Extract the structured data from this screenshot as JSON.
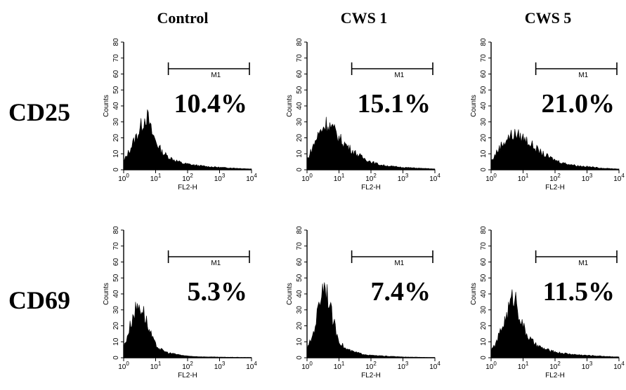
{
  "columns": [
    "Control",
    "CWS 1",
    "CWS 5"
  ],
  "rows": [
    "CD25",
    "CD69"
  ],
  "chart_data": [
    {
      "type": "area",
      "row": "CD25",
      "column": "Control",
      "xlabel": "FL2-H",
      "ylabel": "Counts",
      "xscale": "log",
      "xlim": [
        1,
        10000
      ],
      "ylim": [
        0,
        80
      ],
      "x_ticks": [
        "10^0",
        "10^1",
        "10^2",
        "10^3",
        "10^4"
      ],
      "y_ticks": [
        "0",
        "10",
        "20",
        "30",
        "40",
        "50",
        "60",
        "70",
        "80"
      ],
      "gate": {
        "label": "M1",
        "from": 25,
        "to": 10000
      },
      "percent_label": "10.4%",
      "x": [
        1,
        1.5,
        2,
        3,
        4,
        5,
        6,
        7,
        9,
        12,
        16,
        25,
        40,
        70,
        150,
        400,
        1000,
        3000,
        10000
      ],
      "y": [
        5,
        12,
        17,
        24,
        30,
        34,
        31,
        25,
        20,
        15,
        11,
        8,
        6,
        4,
        3,
        2,
        1.5,
        1,
        0.5
      ]
    },
    {
      "type": "area",
      "row": "CD25",
      "column": "CWS 1",
      "xlabel": "FL2-H",
      "ylabel": "Counts",
      "xscale": "log",
      "xlim": [
        1,
        10000
      ],
      "ylim": [
        0,
        80
      ],
      "x_ticks": [
        "10^0",
        "10^1",
        "10^2",
        "10^3",
        "10^4"
      ],
      "y_ticks": [
        "0",
        "10",
        "20",
        "30",
        "40",
        "50",
        "60",
        "70",
        "80"
      ],
      "gate": {
        "label": "M1",
        "from": 25,
        "to": 10000
      },
      "percent_label": "15.1%",
      "x": [
        1,
        1.5,
        2,
        3,
        4,
        5,
        6,
        8,
        10,
        14,
        20,
        30,
        50,
        100,
        200,
        500,
        1000,
        3000,
        10000
      ],
      "y": [
        6,
        14,
        20,
        26,
        29,
        28,
        26,
        23,
        20,
        17,
        14,
        11,
        8,
        5,
        3,
        2,
        1.5,
        1,
        0.5
      ]
    },
    {
      "type": "area",
      "row": "CD25",
      "column": "CWS 5",
      "xlabel": "FL2-H",
      "ylabel": "Counts",
      "xscale": "log",
      "xlim": [
        1,
        10000
      ],
      "ylim": [
        0,
        80
      ],
      "x_ticks": [
        "10^0",
        "10^1",
        "10^2",
        "10^3",
        "10^4"
      ],
      "y_ticks": [
        "0",
        "10",
        "20",
        "30",
        "40",
        "50",
        "60",
        "70",
        "80"
      ],
      "gate": {
        "label": "M1",
        "from": 25,
        "to": 10000
      },
      "percent_label": "21.0%",
      "x": [
        1,
        1.5,
        2,
        3,
        4,
        5,
        6,
        8,
        10,
        14,
        20,
        30,
        50,
        100,
        200,
        500,
        1000,
        3000,
        10000
      ],
      "y": [
        5,
        11,
        15,
        19,
        21,
        22,
        22,
        21,
        20,
        18,
        15,
        12,
        9,
        6,
        4,
        2.5,
        2,
        1,
        0.5
      ]
    },
    {
      "type": "area",
      "row": "CD69",
      "column": "Control",
      "xlabel": "FL2-H",
      "ylabel": "Counts",
      "xscale": "log",
      "xlim": [
        1,
        10000
      ],
      "ylim": [
        0,
        80
      ],
      "x_ticks": [
        "10^0",
        "10^1",
        "10^2",
        "10^3",
        "10^4"
      ],
      "y_ticks": [
        "0",
        "10",
        "20",
        "30",
        "40",
        "50",
        "60",
        "70",
        "80"
      ],
      "gate": {
        "label": "M1",
        "from": 25,
        "to": 10000
      },
      "percent_label": "5.3%",
      "x": [
        1,
        1.5,
        2,
        2.5,
        3,
        4,
        5,
        6,
        8,
        10,
        15,
        25,
        50,
        100,
        300,
        1000,
        3000,
        10000
      ],
      "y": [
        6,
        18,
        27,
        31,
        33,
        30,
        24,
        18,
        12,
        8,
        5,
        3,
        2,
        1,
        0.6,
        0.4,
        0.3,
        0.2
      ]
    },
    {
      "type": "area",
      "row": "CD69",
      "column": "CWS 1",
      "xlabel": "FL2-H",
      "ylabel": "Counts",
      "xscale": "log",
      "xlim": [
        1,
        10000
      ],
      "ylim": [
        0,
        80
      ],
      "x_ticks": [
        "10^0",
        "10^1",
        "10^2",
        "10^3",
        "10^4"
      ],
      "y_ticks": [
        "0",
        "10",
        "20",
        "30",
        "40",
        "50",
        "60",
        "70",
        "80"
      ],
      "gate": {
        "label": "M1",
        "from": 25,
        "to": 10000
      },
      "percent_label": "7.4%",
      "x": [
        1,
        1.5,
        2,
        2.5,
        3,
        3.5,
        4,
        5,
        6,
        8,
        10,
        15,
        25,
        50,
        100,
        300,
        1000,
        3000,
        10000
      ],
      "y": [
        5,
        14,
        25,
        36,
        44,
        47,
        44,
        35,
        26,
        17,
        11,
        6,
        4,
        2.5,
        1.5,
        1,
        0.5,
        0.3,
        0.2
      ]
    },
    {
      "type": "area",
      "row": "CD69",
      "column": "CWS 5",
      "xlabel": "FL2-H",
      "ylabel": "Counts",
      "xscale": "log",
      "xlim": [
        1,
        10000
      ],
      "ylim": [
        0,
        80
      ],
      "x_ticks": [
        "10^0",
        "10^1",
        "10^2",
        "10^3",
        "10^4"
      ],
      "y_ticks": [
        "0",
        "10",
        "20",
        "30",
        "40",
        "50",
        "60",
        "70",
        "80"
      ],
      "gate": {
        "label": "M1",
        "from": 25,
        "to": 10000
      },
      "percent_label": "11.5%",
      "x": [
        1,
        1.5,
        2,
        3,
        4,
        5,
        6,
        7,
        9,
        12,
        16,
        25,
        40,
        80,
        150,
        400,
        1000,
        3000,
        10000
      ],
      "y": [
        4,
        10,
        17,
        26,
        34,
        39,
        37,
        30,
        22,
        16,
        12,
        8,
        6,
        4,
        3,
        2,
        1.5,
        1,
        0.5
      ]
    }
  ]
}
